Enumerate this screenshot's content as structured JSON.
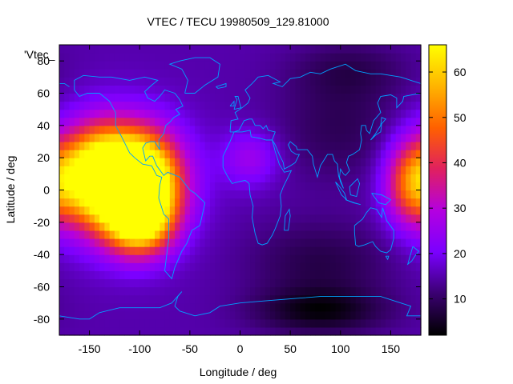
{
  "chart_data": {
    "type": "heatmap",
    "title": "VTEC / TECU 19980509_129.81000",
    "xlabel": "Longitude / deg",
    "ylabel": "Latitude / deg",
    "legend_entry": "'Vtec_",
    "xlim": [
      -180,
      180
    ],
    "ylim": [
      -90,
      90
    ],
    "x_ticks": [
      -150,
      -100,
      -50,
      0,
      50,
      100,
      150
    ],
    "y_ticks": [
      -80,
      -60,
      -40,
      -20,
      0,
      20,
      40,
      60,
      80
    ],
    "colorbar": {
      "min": 2,
      "max": 66,
      "ticks": [
        10,
        20,
        30,
        40,
        50,
        60
      ],
      "palette": [
        "#000000",
        "#3a0070",
        "#7a00ff",
        "#b400e0",
        "#e02060",
        "#ff6000",
        "#ffb400",
        "#ffff00"
      ]
    },
    "grid_resolution_deg": [
      5,
      5
    ],
    "features": [
      {
        "lon": -140,
        "lat": 10,
        "value": 58,
        "sigma_lon": 28,
        "sigma_lat": 20
      },
      {
        "lon": -95,
        "lat": 5,
        "value": 60,
        "sigma_lon": 25,
        "sigma_lat": 20
      },
      {
        "lon": -100,
        "lat": -20,
        "value": 52,
        "sigma_lon": 22,
        "sigma_lat": 14
      },
      {
        "lon": -120,
        "lat": 5,
        "value": 48,
        "sigma_lon": 40,
        "sigma_lat": 25
      },
      {
        "lon": 170,
        "lat": 5,
        "value": 42,
        "sigma_lon": 18,
        "sigma_lat": 18
      },
      {
        "lon": 10,
        "lat": 20,
        "value": 26,
        "sigma_lon": 20,
        "sigma_lat": 12
      },
      {
        "lon": 80,
        "lat": -75,
        "value": 4,
        "sigma_lon": 45,
        "sigma_lat": 10
      },
      {
        "lon": 80,
        "lat": -45,
        "value": 8,
        "sigma_lon": 50,
        "sigma_lat": 18
      },
      {
        "lon": 100,
        "lat": 40,
        "value": 9,
        "sigma_lon": 45,
        "sigma_lat": 25
      },
      {
        "lon": 110,
        "lat": 75,
        "value": 10,
        "sigma_lon": 40,
        "sigma_lat": 12
      }
    ],
    "background_value": 15,
    "coastline_color": "#00a0ff"
  }
}
